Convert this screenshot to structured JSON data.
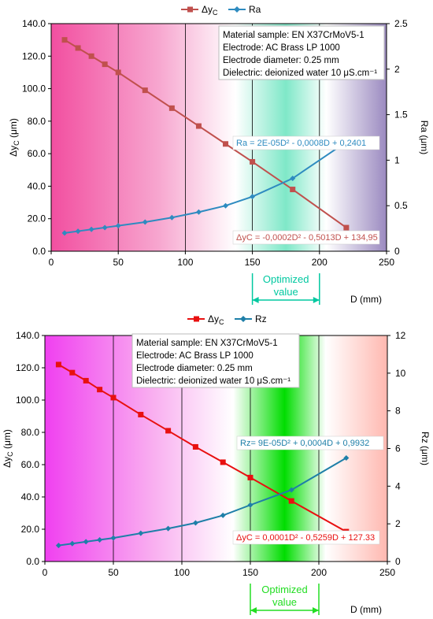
{
  "chart_data": [
    {
      "type": "line",
      "xlim": [
        0,
        250
      ],
      "xticks": [
        "0",
        "50",
        "100",
        "150",
        "200",
        "250"
      ],
      "xlabel": "D (mm)",
      "ylim_left": [
        0,
        140
      ],
      "yticks_left": [
        "0.0",
        "20.0",
        "40.0",
        "60.0",
        "80.0",
        "100.0",
        "120.0",
        "140.0"
      ],
      "ylabel_left": "Δy",
      "ylabel_left_sub": "C",
      "ylabel_left_unit": " (μm)",
      "ylim_right": [
        0,
        2.5
      ],
      "yticks_right": [
        "0",
        "0.5",
        "1",
        "1.5",
        "2",
        "2.5"
      ],
      "ylabel_right": "Ra (μm)",
      "grid": "vertical",
      "legend_position": "top",
      "series": [
        {
          "name": "Δy",
          "name_sub": "C",
          "axis": "left",
          "color": "#c0504d",
          "marker": "square",
          "x": [
            10,
            20,
            30,
            40,
            50,
            70,
            90,
            110,
            130,
            150,
            180,
            220
          ],
          "y": [
            130.0,
            125.0,
            120.0,
            115.0,
            110.0,
            99.0,
            88.0,
            77.0,
            66.0,
            55.0,
            38.0,
            14.5
          ]
        },
        {
          "name": "Ra",
          "axis": "right",
          "color": "#2e8bc0",
          "marker": "diamond",
          "x": [
            10,
            20,
            30,
            40,
            50,
            70,
            90,
            110,
            130,
            150,
            180,
            220
          ],
          "y": [
            0.2,
            0.22,
            0.24,
            0.26,
            0.28,
            0.32,
            0.37,
            0.43,
            0.5,
            0.6,
            0.8,
            1.2
          ]
        }
      ],
      "info_box": [
        "Material sample: EN X37CrMoV5-1",
        "Electrode: AC Brass LP 1000",
        "Electrode diameter: 0.25 mm",
        "Dielectric: deionized water 10 μS.cm⁻¹"
      ],
      "equations": [
        "Ra = 2E-05D² - 0,0008D + 0,2401",
        "ΔyC = -0,0002D² - 0,5013D + 134,95"
      ],
      "equation_colors": [
        "#2e8bc0",
        "#c0504d"
      ],
      "optimized": {
        "label": [
          "Optimized",
          "value"
        ],
        "from": 150,
        "to": 200,
        "color": "#00c8a0"
      },
      "background": {
        "stops": [
          "#f24fa0",
          "#f7a6cf",
          "#ffffff",
          "#7fe8c8",
          "#ffffff",
          "#9b8ac0"
        ]
      }
    },
    {
      "type": "line",
      "xlim": [
        0,
        250
      ],
      "xticks": [
        "0",
        "50",
        "100",
        "150",
        "200",
        "250"
      ],
      "xlabel": "D (mm)",
      "ylim_left": [
        0,
        140
      ],
      "yticks_left": [
        "0.0",
        "20.0",
        "40.0",
        "60.0",
        "80.0",
        "100.0",
        "120.0",
        "140.0"
      ],
      "ylabel_left": "Δy",
      "ylabel_left_sub": "C",
      "ylabel_left_unit": " (μm)",
      "ylim_right": [
        0,
        12
      ],
      "yticks_right": [
        "0",
        "2",
        "4",
        "6",
        "8",
        "10",
        "12"
      ],
      "ylabel_right": "Rz (μm)",
      "grid": "vertical",
      "legend_position": "top",
      "series": [
        {
          "name": "Δy",
          "name_sub": "C",
          "axis": "left",
          "color": "#e81010",
          "marker": "square",
          "x": [
            10,
            20,
            30,
            40,
            50,
            70,
            90,
            110,
            130,
            150,
            180,
            220
          ],
          "y": [
            122.0,
            117.0,
            112.0,
            106.5,
            101.5,
            91.0,
            81.0,
            71.0,
            61.5,
            52.0,
            37.5,
            18.5
          ]
        },
        {
          "name": "Rz",
          "axis": "right",
          "color": "#1e7fa8",
          "marker": "diamond",
          "x": [
            10,
            20,
            30,
            40,
            50,
            70,
            90,
            110,
            130,
            150,
            180,
            220
          ],
          "y": [
            0.85,
            0.95,
            1.05,
            1.15,
            1.25,
            1.5,
            1.75,
            2.05,
            2.45,
            3.0,
            3.8,
            5.5
          ]
        }
      ],
      "info_box": [
        "Material sample: EN X37CrMoV5-1",
        "Electrode: AC Brass LP 1000",
        "Electrode diameter: 0.25 mm",
        "Dielectric: deionized water 10 μS.cm⁻¹"
      ],
      "equations": [
        "Rz= 9E-05D² + 0,0004D + 0,9932",
        "ΔyC = 0,0001D² - 0,5259D + 127.33"
      ],
      "equation_colors": [
        "#1e7fa8",
        "#e81010"
      ],
      "optimized": {
        "label": [
          "Optimized",
          "value"
        ],
        "from": 150,
        "to": 200,
        "color": "#22dd22"
      },
      "background": {
        "stops": [
          "#f040f0",
          "#f9b0f0",
          "#ffffff",
          "#00dd00",
          "#ffffff",
          "#ffb8b0"
        ]
      }
    }
  ]
}
